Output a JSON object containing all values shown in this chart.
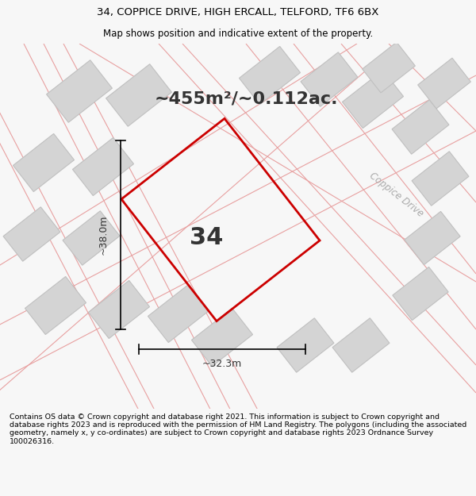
{
  "title_line1": "34, COPPICE DRIVE, HIGH ERCALL, TELFORD, TF6 6BX",
  "title_line2": "Map shows position and indicative extent of the property.",
  "area_text": "~455m²/~0.112ac.",
  "plot_number": "34",
  "dim_width": "~32.3m",
  "dim_height": "~38.0m",
  "road_label": "Coppice Drive",
  "footer_text": "Contains OS data © Crown copyright and database right 2021. This information is subject to Crown copyright and database rights 2023 and is reproduced with the permission of HM Land Registry. The polygons (including the associated geometry, namely x, y co-ordinates) are subject to Crown copyright and database rights 2023 Ordnance Survey 100026316.",
  "bg_color": "#f7f7f7",
  "map_bg": "#f9f9f9",
  "plot_color": "#cc0000",
  "road_line_color": "#e8a0a0",
  "building_color": "#d4d4d4",
  "building_edge": "#c0c0c0",
  "title_fontsize": 9.5,
  "subtitle_fontsize": 8.5,
  "area_fontsize": 16,
  "plot_num_fontsize": 22
}
